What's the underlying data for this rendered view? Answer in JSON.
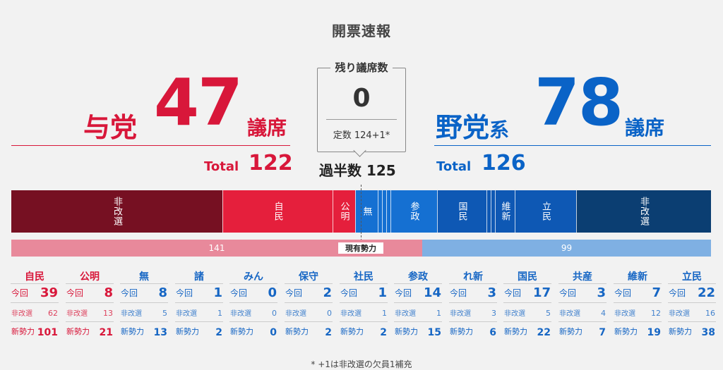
{
  "title": "開票速報",
  "ruling": {
    "name": "与党",
    "seats": "47",
    "unit": "議席",
    "total_label": "Total",
    "total": "122"
  },
  "center": {
    "remaining_label": "残り議席数",
    "remaining": "0",
    "teisu": "定数 124+1*",
    "majority": "過半数 125"
  },
  "opposition": {
    "name": "野党",
    "name_suffix": "系",
    "seats": "78",
    "unit": "議席",
    "total_label": "Total",
    "total": "126"
  },
  "seat_bar": {
    "segments": [
      {
        "label": "非改選",
        "color": "#761022"
      },
      {
        "label": "自民",
        "color": "#e51f3c"
      },
      {
        "label": "公明",
        "color": "#e51f3c"
      },
      {
        "label": "無",
        "color": "#1570d2"
      },
      {
        "label": "参政",
        "color": "#1570d2"
      },
      {
        "label": "国民",
        "color": "#0e58b4"
      },
      {
        "label": "維新",
        "color": "#0e58b4"
      },
      {
        "label": "立民",
        "color": "#0e58b4"
      },
      {
        "label": "非改選",
        "color": "#0b3e72"
      }
    ]
  },
  "strength_bar": {
    "left_value": "141",
    "right_value": "99",
    "label": "現有勢力",
    "left_color": "#e8899b",
    "right_color": "#7fb0e3"
  },
  "table": {
    "row_labels": {
      "current": "今回",
      "nonelection": "非改選",
      "new_strength": "新勢力"
    },
    "parties": [
      {
        "name": "自民",
        "side": "red",
        "current": "39",
        "nonelection": "62",
        "new_strength": "101"
      },
      {
        "name": "公明",
        "side": "red",
        "current": "8",
        "nonelection": "13",
        "new_strength": "21"
      },
      {
        "name": "無",
        "side": "blue",
        "current": "8",
        "nonelection": "5",
        "new_strength": "13"
      },
      {
        "name": "諸",
        "side": "blue",
        "current": "1",
        "nonelection": "1",
        "new_strength": "2"
      },
      {
        "name": "みん",
        "side": "blue",
        "current": "0",
        "nonelection": "0",
        "new_strength": "0"
      },
      {
        "name": "保守",
        "side": "blue",
        "current": "2",
        "nonelection": "0",
        "new_strength": "2"
      },
      {
        "name": "社民",
        "side": "blue",
        "current": "1",
        "nonelection": "1",
        "new_strength": "2"
      },
      {
        "name": "参政",
        "side": "blue",
        "current": "14",
        "nonelection": "1",
        "new_strength": "15"
      },
      {
        "name": "れ新",
        "side": "blue",
        "current": "3",
        "nonelection": "3",
        "new_strength": "6"
      },
      {
        "name": "国民",
        "side": "blue",
        "current": "17",
        "nonelection": "5",
        "new_strength": "22"
      },
      {
        "name": "共産",
        "side": "blue",
        "current": "3",
        "nonelection": "4",
        "new_strength": "7"
      },
      {
        "name": "維新",
        "side": "blue",
        "current": "7",
        "nonelection": "12",
        "new_strength": "19"
      },
      {
        "name": "立民",
        "side": "blue",
        "current": "22",
        "nonelection": "16",
        "new_strength": "38"
      }
    ]
  },
  "footnote": "* +1は非改選の欠員1補充"
}
